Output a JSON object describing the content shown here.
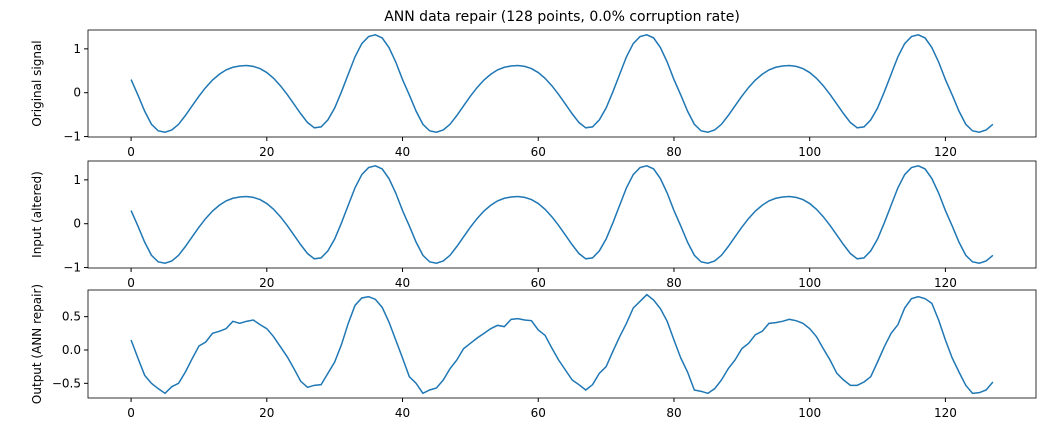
{
  "chart_data": [
    {
      "type": "line",
      "title": "ANN data repair (128 points, 0.0% corruption rate)",
      "ylabel": "Original signal",
      "x": [
        0,
        1,
        2,
        3,
        4,
        5,
        6,
        7,
        8,
        9,
        10,
        11,
        12,
        13,
        14,
        15,
        16,
        17,
        18,
        19,
        20,
        21,
        22,
        23,
        24,
        25,
        26,
        27,
        28,
        29,
        30,
        31,
        32,
        33,
        34,
        35,
        36,
        37,
        38,
        39,
        40,
        41,
        42,
        43,
        44,
        45,
        46,
        47,
        48,
        49,
        50,
        51,
        52,
        53,
        54,
        55,
        56,
        57,
        58,
        59,
        60,
        61,
        62,
        63,
        64,
        65,
        66,
        67,
        68,
        69,
        70,
        71,
        72,
        73,
        74,
        75,
        76,
        77,
        78,
        79,
        80,
        81,
        82,
        83,
        84,
        85,
        86,
        87,
        88,
        89,
        90,
        91,
        92,
        93,
        94,
        95,
        96,
        97,
        98,
        99,
        100,
        101,
        102,
        103,
        104,
        105,
        106,
        107,
        108,
        109,
        110,
        111,
        112,
        113,
        114,
        115,
        116,
        117,
        118,
        119,
        120,
        121,
        122,
        123,
        124,
        125,
        126,
        127
      ],
      "series": [
        {
          "color": "#1f77b4",
          "values": [
            0.3,
            -0.05,
            -0.42,
            -0.72,
            -0.87,
            -0.9,
            -0.85,
            -0.72,
            -0.52,
            -0.3,
            -0.08,
            0.12,
            0.29,
            0.42,
            0.52,
            0.58,
            0.61,
            0.62,
            0.6,
            0.55,
            0.46,
            0.33,
            0.16,
            -0.04,
            -0.26,
            -0.48,
            -0.68,
            -0.8,
            -0.78,
            -0.62,
            -0.35,
            0.02,
            0.42,
            0.82,
            1.12,
            1.28,
            1.32,
            1.25,
            1.03,
            0.7,
            0.3,
            -0.05,
            -0.42,
            -0.72,
            -0.87,
            -0.9,
            -0.85,
            -0.72,
            -0.52,
            -0.3,
            -0.08,
            0.12,
            0.29,
            0.42,
            0.52,
            0.58,
            0.61,
            0.62,
            0.6,
            0.55,
            0.46,
            0.33,
            0.16,
            -0.04,
            -0.26,
            -0.48,
            -0.68,
            -0.8,
            -0.78,
            -0.62,
            -0.35,
            0.02,
            0.42,
            0.82,
            1.12,
            1.28,
            1.32,
            1.25,
            1.03,
            0.7,
            0.3,
            -0.05,
            -0.42,
            -0.72,
            -0.87,
            -0.9,
            -0.85,
            -0.72,
            -0.52,
            -0.3,
            -0.08,
            0.12,
            0.29,
            0.42,
            0.52,
            0.58,
            0.61,
            0.62,
            0.6,
            0.55,
            0.46,
            0.33,
            0.16,
            -0.04,
            -0.26,
            -0.48,
            -0.68,
            -0.8,
            -0.78,
            -0.62,
            -0.35,
            0.02,
            0.42,
            0.82,
            1.12,
            1.28,
            1.32,
            1.25,
            1.03,
            0.7,
            0.3,
            -0.05,
            -0.42,
            -0.72,
            -0.87,
            -0.9,
            -0.85,
            -0.72
          ]
        }
      ],
      "xlim": [
        -6.35,
        133.35
      ],
      "xticks": [
        0,
        20,
        40,
        60,
        80,
        100,
        120
      ],
      "ylim": [
        -1.01,
        1.43
      ],
      "yticks": [
        {
          "value": -1,
          "label": "−1"
        },
        0,
        1
      ]
    },
    {
      "type": "line",
      "ylabel": "Input (altered)",
      "x": [
        0,
        1,
        2,
        3,
        4,
        5,
        6,
        7,
        8,
        9,
        10,
        11,
        12,
        13,
        14,
        15,
        16,
        17,
        18,
        19,
        20,
        21,
        22,
        23,
        24,
        25,
        26,
        27,
        28,
        29,
        30,
        31,
        32,
        33,
        34,
        35,
        36,
        37,
        38,
        39,
        40,
        41,
        42,
        43,
        44,
        45,
        46,
        47,
        48,
        49,
        50,
        51,
        52,
        53,
        54,
        55,
        56,
        57,
        58,
        59,
        60,
        61,
        62,
        63,
        64,
        65,
        66,
        67,
        68,
        69,
        70,
        71,
        72,
        73,
        74,
        75,
        76,
        77,
        78,
        79,
        80,
        81,
        82,
        83,
        84,
        85,
        86,
        87,
        88,
        89,
        90,
        91,
        92,
        93,
        94,
        95,
        96,
        97,
        98,
        99,
        100,
        101,
        102,
        103,
        104,
        105,
        106,
        107,
        108,
        109,
        110,
        111,
        112,
        113,
        114,
        115,
        116,
        117,
        118,
        119,
        120,
        121,
        122,
        123,
        124,
        125,
        126,
        127
      ],
      "series": [
        {
          "color": "#1f77b4",
          "values": [
            0.3,
            -0.05,
            -0.42,
            -0.72,
            -0.87,
            -0.9,
            -0.85,
            -0.72,
            -0.52,
            -0.3,
            -0.08,
            0.12,
            0.29,
            0.42,
            0.52,
            0.58,
            0.61,
            0.62,
            0.6,
            0.55,
            0.46,
            0.33,
            0.16,
            -0.04,
            -0.26,
            -0.48,
            -0.68,
            -0.8,
            -0.78,
            -0.62,
            -0.35,
            0.02,
            0.42,
            0.82,
            1.12,
            1.28,
            1.32,
            1.25,
            1.03,
            0.7,
            0.3,
            -0.05,
            -0.42,
            -0.72,
            -0.87,
            -0.9,
            -0.85,
            -0.72,
            -0.52,
            -0.3,
            -0.08,
            0.12,
            0.29,
            0.42,
            0.52,
            0.58,
            0.61,
            0.62,
            0.6,
            0.55,
            0.46,
            0.33,
            0.16,
            -0.04,
            -0.26,
            -0.48,
            -0.68,
            -0.8,
            -0.78,
            -0.62,
            -0.35,
            0.02,
            0.42,
            0.82,
            1.12,
            1.28,
            1.32,
            1.25,
            1.03,
            0.7,
            0.3,
            -0.05,
            -0.42,
            -0.72,
            -0.87,
            -0.9,
            -0.85,
            -0.72,
            -0.52,
            -0.3,
            -0.08,
            0.12,
            0.29,
            0.42,
            0.52,
            0.58,
            0.61,
            0.62,
            0.6,
            0.55,
            0.46,
            0.33,
            0.16,
            -0.04,
            -0.26,
            -0.48,
            -0.68,
            -0.8,
            -0.78,
            -0.62,
            -0.35,
            0.02,
            0.42,
            0.82,
            1.12,
            1.28,
            1.32,
            1.25,
            1.03,
            0.7,
            0.3,
            -0.05,
            -0.42,
            -0.72,
            -0.87,
            -0.9,
            -0.85,
            -0.72
          ]
        }
      ],
      "xlim": [
        -6.35,
        133.35
      ],
      "xticks": [
        0,
        20,
        40,
        60,
        80,
        100,
        120
      ],
      "ylim": [
        -1.01,
        1.43
      ],
      "yticks": [
        {
          "value": -1,
          "label": "−1"
        },
        0,
        1
      ]
    },
    {
      "type": "line",
      "ylabel": "Output (ANN repair)",
      "x": [
        0,
        1,
        2,
        3,
        4,
        5,
        6,
        7,
        8,
        9,
        10,
        11,
        12,
        13,
        14,
        15,
        16,
        17,
        18,
        19,
        20,
        21,
        22,
        23,
        24,
        25,
        26,
        27,
        28,
        29,
        30,
        31,
        32,
        33,
        34,
        35,
        36,
        37,
        38,
        39,
        40,
        41,
        42,
        43,
        44,
        45,
        46,
        47,
        48,
        49,
        50,
        51,
        52,
        53,
        54,
        55,
        56,
        57,
        58,
        59,
        60,
        61,
        62,
        63,
        64,
        65,
        66,
        67,
        68,
        69,
        70,
        71,
        72,
        73,
        74,
        75,
        76,
        77,
        78,
        79,
        80,
        81,
        82,
        83,
        84,
        85,
        86,
        87,
        88,
        89,
        90,
        91,
        92,
        93,
        94,
        95,
        96,
        97,
        98,
        99,
        100,
        101,
        102,
        103,
        104,
        105,
        106,
        107,
        108,
        109,
        110,
        111,
        112,
        113,
        114,
        115,
        116,
        117,
        118,
        119,
        120,
        121,
        122,
        123,
        124,
        125,
        126,
        127
      ],
      "series": [
        {
          "color": "#1f77b4",
          "values": [
            0.15,
            -0.12,
            -0.38,
            -0.5,
            -0.58,
            -0.65,
            -0.55,
            -0.5,
            -0.33,
            -0.13,
            0.06,
            0.12,
            0.25,
            0.28,
            0.32,
            0.43,
            0.4,
            0.43,
            0.45,
            0.38,
            0.32,
            0.2,
            0.05,
            -0.1,
            -0.28,
            -0.47,
            -0.56,
            -0.53,
            -0.52,
            -0.35,
            -0.18,
            0.08,
            0.4,
            0.67,
            0.78,
            0.8,
            0.76,
            0.64,
            0.42,
            0.15,
            -0.12,
            -0.4,
            -0.5,
            -0.65,
            -0.6,
            -0.57,
            -0.45,
            -0.28,
            -0.15,
            0.02,
            0.1,
            0.18,
            0.25,
            0.32,
            0.37,
            0.35,
            0.46,
            0.47,
            0.45,
            0.44,
            0.3,
            0.22,
            0.03,
            -0.15,
            -0.3,
            -0.45,
            -0.52,
            -0.6,
            -0.52,
            -0.35,
            -0.25,
            -0.02,
            0.2,
            0.4,
            0.63,
            0.73,
            0.83,
            0.75,
            0.62,
            0.43,
            0.15,
            -0.12,
            -0.33,
            -0.6,
            -0.62,
            -0.65,
            -0.58,
            -0.45,
            -0.28,
            -0.15,
            0.02,
            0.1,
            0.23,
            0.28,
            0.4,
            0.41,
            0.43,
            0.46,
            0.44,
            0.4,
            0.32,
            0.2,
            0.02,
            -0.15,
            -0.35,
            -0.45,
            -0.53,
            -0.53,
            -0.48,
            -0.4,
            -0.18,
            0.05,
            0.25,
            0.38,
            0.63,
            0.77,
            0.8,
            0.77,
            0.7,
            0.45,
            0.15,
            -0.12,
            -0.33,
            -0.53,
            -0.65,
            -0.64,
            -0.6,
            -0.48
          ]
        }
      ],
      "xlim": [
        -6.35,
        133.35
      ],
      "xticks": [
        0,
        20,
        40,
        60,
        80,
        100,
        120
      ],
      "ylim": [
        -0.72,
        0.9
      ],
      "yticks": [
        {
          "value": -0.5,
          "label": "−0.5"
        },
        {
          "value": 0,
          "label": "0.0"
        },
        0.5
      ]
    }
  ]
}
